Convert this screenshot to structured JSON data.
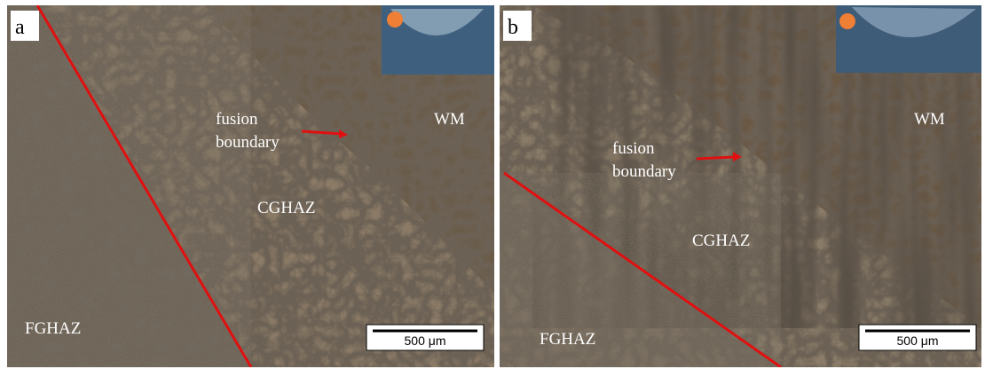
{
  "panels": [
    {
      "label": "a",
      "fusion_boundary": [
        "fusion",
        "boundary"
      ],
      "wm": "WM",
      "cghaz": "CGHAZ",
      "fghaz": "FGHAZ",
      "scale_bar": "500 μm"
    },
    {
      "label": "b",
      "fusion_boundary": [
        "fusion",
        "boundary"
      ],
      "wm": "WM",
      "cghaz": "CGHAZ",
      "fghaz": "FGHAZ",
      "scale_bar": "500 μm"
    }
  ]
}
